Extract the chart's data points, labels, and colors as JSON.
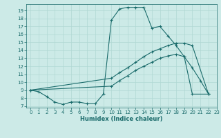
{
  "xlabel": "Humidex (Indice chaleur)",
  "bg_color": "#cceae7",
  "line_color": "#1a6b6b",
  "grid_color": "#b0d8d4",
  "xlim": [
    -0.5,
    23
  ],
  "ylim": [
    6.8,
    19.8
  ],
  "yticks": [
    7,
    8,
    9,
    10,
    11,
    12,
    13,
    14,
    15,
    16,
    17,
    18,
    19
  ],
  "xticks": [
    0,
    1,
    2,
    3,
    4,
    5,
    6,
    7,
    8,
    9,
    10,
    11,
    12,
    13,
    14,
    15,
    16,
    17,
    18,
    19,
    20,
    21,
    22,
    23
  ],
  "series": [
    {
      "x": [
        0,
        1,
        2,
        3,
        4,
        5,
        6,
        7,
        8,
        9,
        10,
        11,
        12,
        13,
        14,
        15,
        16,
        17,
        18,
        19,
        20,
        21,
        22
      ],
      "y": [
        9,
        8.8,
        8.2,
        7.5,
        7.2,
        7.5,
        7.5,
        7.3,
        7.3,
        8.5,
        17.8,
        19.2,
        19.4,
        19.4,
        19.4,
        16.8,
        17.0,
        15.8,
        14.6,
        13.2,
        11.8,
        10.2,
        8.5
      ]
    },
    {
      "x": [
        0,
        10,
        11,
        12,
        13,
        14,
        15,
        16,
        17,
        18,
        19,
        20,
        22
      ],
      "y": [
        9,
        10.5,
        11.2,
        11.8,
        12.5,
        13.2,
        13.8,
        14.2,
        14.6,
        14.9,
        14.9,
        14.6,
        8.5
      ]
    },
    {
      "x": [
        0,
        10,
        11,
        12,
        13,
        14,
        15,
        16,
        17,
        18,
        19,
        20,
        22
      ],
      "y": [
        9,
        9.5,
        10.2,
        10.8,
        11.5,
        12.0,
        12.5,
        13.0,
        13.3,
        13.5,
        13.2,
        8.5,
        8.5
      ]
    }
  ]
}
